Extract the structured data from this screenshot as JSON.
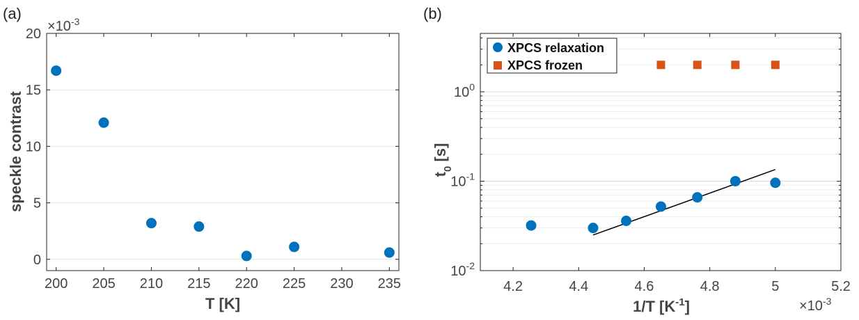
{
  "chart_data": [
    {
      "panel": "(a)",
      "type": "scatter",
      "xlabel": "T [K]",
      "ylabel": "speckle contrast",
      "y_multiplier": "×10",
      "y_multiplier_exp": "-3",
      "xlim": [
        199,
        236
      ],
      "ylim": [
        -1,
        20
      ],
      "xticks": [
        200,
        205,
        210,
        215,
        220,
        225,
        230,
        235
      ],
      "yticks": [
        0,
        5,
        10,
        15,
        20
      ],
      "grid": "y-major",
      "color": "#0072BD",
      "x": [
        200,
        205,
        210,
        215,
        220,
        225,
        235
      ],
      "y": [
        16.7,
        12.1,
        3.2,
        2.9,
        0.3,
        1.1,
        0.6
      ]
    },
    {
      "panel": "(b)",
      "type": "scatter",
      "xlabel": "1/T [K",
      "xlabel_exp": "-1",
      "xlabel_close": "]",
      "ylabel": "t",
      "ylabel_sub": "0",
      "ylabel_unit": " [s]",
      "x_multiplier": "×10",
      "x_multiplier_exp": "-3",
      "yscale": "log",
      "xlim": [
        4.1,
        5.2
      ],
      "ylim": [
        0.01,
        4.5
      ],
      "xticks": [
        4.2,
        4.4,
        4.6,
        4.8,
        5.0,
        5.2
      ],
      "xtick_labels": [
        "4.2",
        "4.4",
        "4.6",
        "4.8",
        "5",
        "5.2"
      ],
      "yticks": [
        {
          "value": 0.01,
          "base": "10",
          "exp": "-2"
        },
        {
          "value": 0.1,
          "base": "10",
          "exp": "-1"
        },
        {
          "value": 1,
          "base": "10",
          "exp": "0"
        }
      ],
      "grid": "y-minor",
      "legend_position": "top-left",
      "series": [
        {
          "name": "XPCS relaxation",
          "marker": "circle",
          "color": "#0072BD",
          "x": [
            4.255,
            4.444,
            4.545,
            4.651,
            4.762,
            4.878,
            5.0
          ],
          "y": [
            0.032,
            0.03,
            0.036,
            0.052,
            0.066,
            0.1,
            0.096
          ]
        },
        {
          "name": "XPCS frozen",
          "marker": "square",
          "color": "#D95319",
          "x": [
            4.651,
            4.762,
            4.878,
            5.0
          ],
          "y": [
            2.0,
            2.0,
            2.0,
            2.0
          ]
        }
      ],
      "fit_line": {
        "x": [
          4.444,
          5.0
        ],
        "y": [
          0.025,
          0.135
        ],
        "color": "#000000"
      }
    }
  ]
}
